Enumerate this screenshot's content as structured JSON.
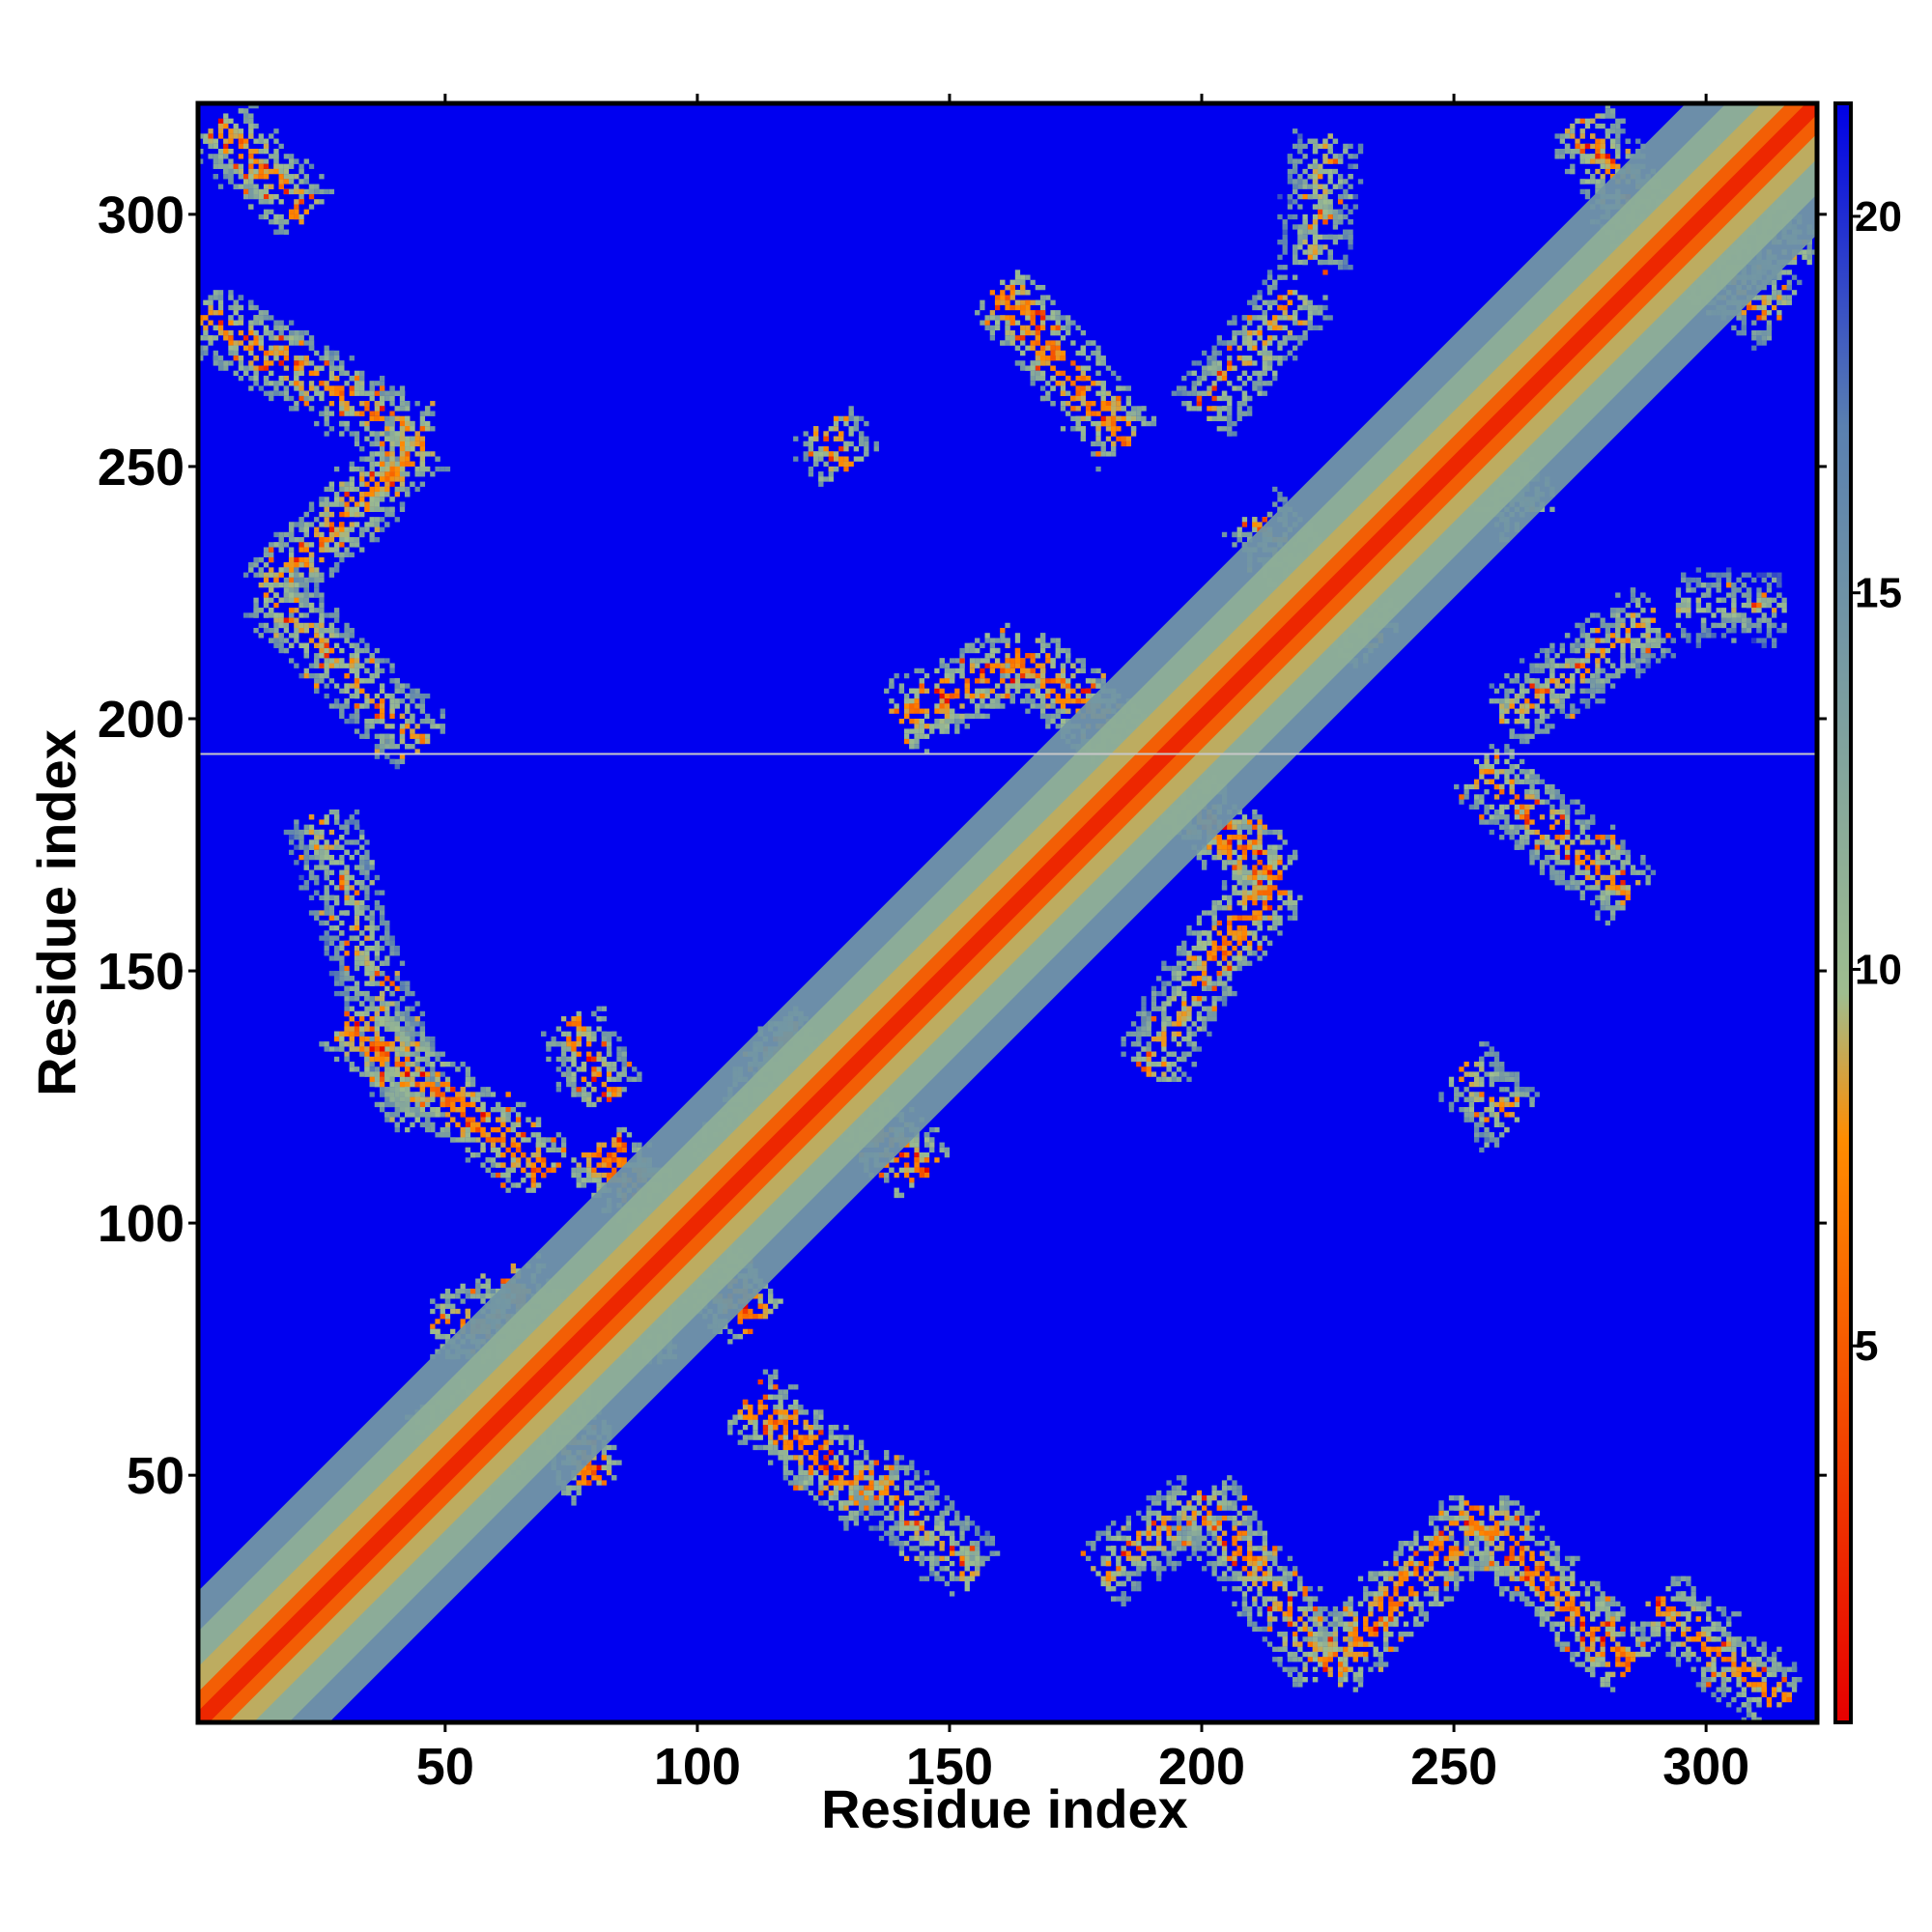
{
  "chart_data": {
    "type": "heatmap",
    "title": "",
    "xlabel": "Residue index",
    "ylabel": "Residue index",
    "xlim": [
      1,
      322
    ],
    "ylim": [
      1,
      322
    ],
    "x_ticks": [
      50,
      100,
      150,
      200,
      250,
      300
    ],
    "y_ticks": [
      50,
      100,
      150,
      200,
      250,
      300
    ],
    "colorbar": {
      "range": [
        0,
        21.5
      ],
      "ticks": [
        5,
        10,
        15,
        20
      ],
      "colors": [
        "#e60000",
        "#ff8c00",
        "#9ebd8f",
        "#5a80b0",
        "#0000e6"
      ],
      "stops": [
        0.0,
        0.36,
        0.45,
        0.8,
        1.0
      ]
    },
    "background_value": 21,
    "background_color": "#0000f0",
    "diagonal": {
      "value": 2,
      "band_value": 4
    },
    "contact_bands": [
      {
        "x1": 2,
        "y1": 280,
        "x2": 45,
        "y2": 255,
        "value": 11
      },
      {
        "x1": 45,
        "y1": 255,
        "x2": 15,
        "y2": 225,
        "value": 11
      },
      {
        "x1": 15,
        "y1": 225,
        "x2": 45,
        "y2": 195,
        "value": 12
      },
      {
        "x1": 5,
        "y1": 318,
        "x2": 22,
        "y2": 300,
        "value": 11
      },
      {
        "x1": 25,
        "y1": 180,
        "x2": 45,
        "y2": 120,
        "value": 13
      },
      {
        "x1": 30,
        "y1": 140,
        "x2": 70,
        "y2": 110,
        "value": 10
      },
      {
        "x1": 75,
        "y1": 140,
        "x2": 82,
        "y2": 125,
        "value": 11
      },
      {
        "x1": 80,
        "y1": 115,
        "x2": 112,
        "y2": 80,
        "value": 9
      },
      {
        "x1": 48,
        "y1": 80,
        "x2": 95,
        "y2": 80,
        "value": 11
      },
      {
        "x1": 48,
        "y1": 65,
        "x2": 60,
        "y2": 48,
        "value": 11
      },
      {
        "x1": 62,
        "y1": 90,
        "x2": 80,
        "y2": 48,
        "value": 10
      },
      {
        "x1": 110,
        "y1": 65,
        "x2": 135,
        "y2": 45,
        "value": 10
      },
      {
        "x1": 135,
        "y1": 50,
        "x2": 155,
        "y2": 30,
        "value": 12
      },
      {
        "x1": 115,
        "y1": 138,
        "x2": 145,
        "y2": 110,
        "value": 10
      },
      {
        "x1": 105,
        "y1": 110,
        "x2": 120,
        "y2": 138,
        "value": 11
      },
      {
        "x1": 125,
        "y1": 258,
        "x2": 130,
        "y2": 250,
        "value": 11
      },
      {
        "x1": 160,
        "y1": 285,
        "x2": 185,
        "y2": 255,
        "value": 10
      },
      {
        "x1": 140,
        "y1": 200,
        "x2": 165,
        "y2": 212,
        "value": 10
      },
      {
        "x1": 165,
        "y1": 212,
        "x2": 185,
        "y2": 195,
        "value": 10
      },
      {
        "x1": 195,
        "y1": 185,
        "x2": 215,
        "y2": 168,
        "value": 10
      },
      {
        "x1": 215,
        "y1": 168,
        "x2": 200,
        "y2": 150,
        "value": 10
      },
      {
        "x1": 200,
        "y1": 150,
        "x2": 190,
        "y2": 130,
        "value": 12
      },
      {
        "x1": 200,
        "y1": 260,
        "x2": 220,
        "y2": 285,
        "value": 12
      },
      {
        "x1": 222,
        "y1": 290,
        "x2": 225,
        "y2": 315,
        "value": 13
      },
      {
        "x1": 210,
        "y1": 240,
        "x2": 235,
        "y2": 215,
        "value": 12
      },
      {
        "x1": 255,
        "y1": 190,
        "x2": 285,
        "y2": 165,
        "value": 11
      },
      {
        "x1": 260,
        "y1": 200,
        "x2": 290,
        "y2": 220,
        "value": 12
      },
      {
        "x1": 295,
        "y1": 222,
        "x2": 315,
        "y2": 222,
        "value": 14
      },
      {
        "x1": 250,
        "y1": 260,
        "x2": 265,
        "y2": 240,
        "value": 12
      },
      {
        "x1": 252,
        "y1": 130,
        "x2": 262,
        "y2": 120,
        "value": 12
      },
      {
        "x1": 180,
        "y1": 30,
        "x2": 200,
        "y2": 45,
        "value": 12
      },
      {
        "x1": 200,
        "y1": 45,
        "x2": 225,
        "y2": 12,
        "value": 11
      },
      {
        "x1": 225,
        "y1": 12,
        "x2": 255,
        "y2": 42,
        "value": 10
      },
      {
        "x1": 255,
        "y1": 42,
        "x2": 285,
        "y2": 12,
        "value": 10
      },
      {
        "x1": 290,
        "y1": 25,
        "x2": 315,
        "y2": 5,
        "value": 11
      },
      {
        "x1": 275,
        "y1": 318,
        "x2": 290,
        "y2": 295,
        "value": 11
      },
      {
        "x1": 290,
        "y1": 295,
        "x2": 315,
        "y2": 280,
        "value": 12
      },
      {
        "x1": 300,
        "y1": 310,
        "x2": 318,
        "y2": 290,
        "value": 13
      }
    ],
    "gap_row": 193
  }
}
